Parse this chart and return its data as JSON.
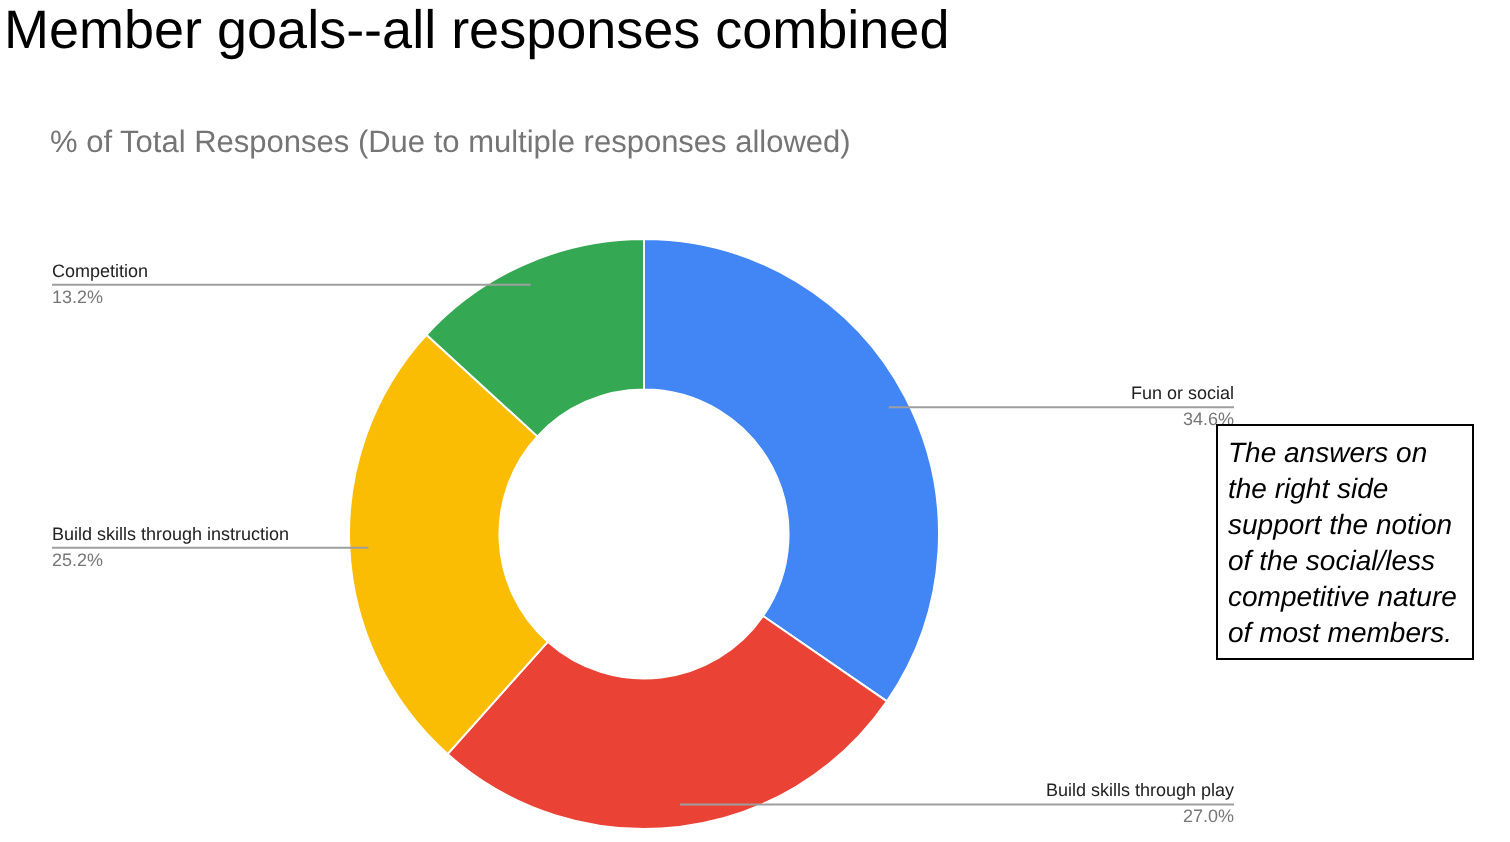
{
  "chart_data": {
    "type": "donut",
    "title": "Member goals--all responses combined",
    "subtitle": "% of Total Responses (Due to multiple responses allowed)",
    "categories": [
      "Fun or social",
      "Build skills through play",
      "Build skills through instruction",
      "Competition"
    ],
    "values": [
      34.6,
      27.0,
      25.2,
      13.2
    ],
    "value_labels": [
      "34.6%",
      "27.0%",
      "25.2%",
      "13.2%"
    ],
    "colors": [
      "#4285f4",
      "#ea4335",
      "#fbbc04",
      "#34a853"
    ],
    "legend": false,
    "annotations": [
      "The answers on the right side support the notion of the social/less competitive nature of most members."
    ]
  }
}
